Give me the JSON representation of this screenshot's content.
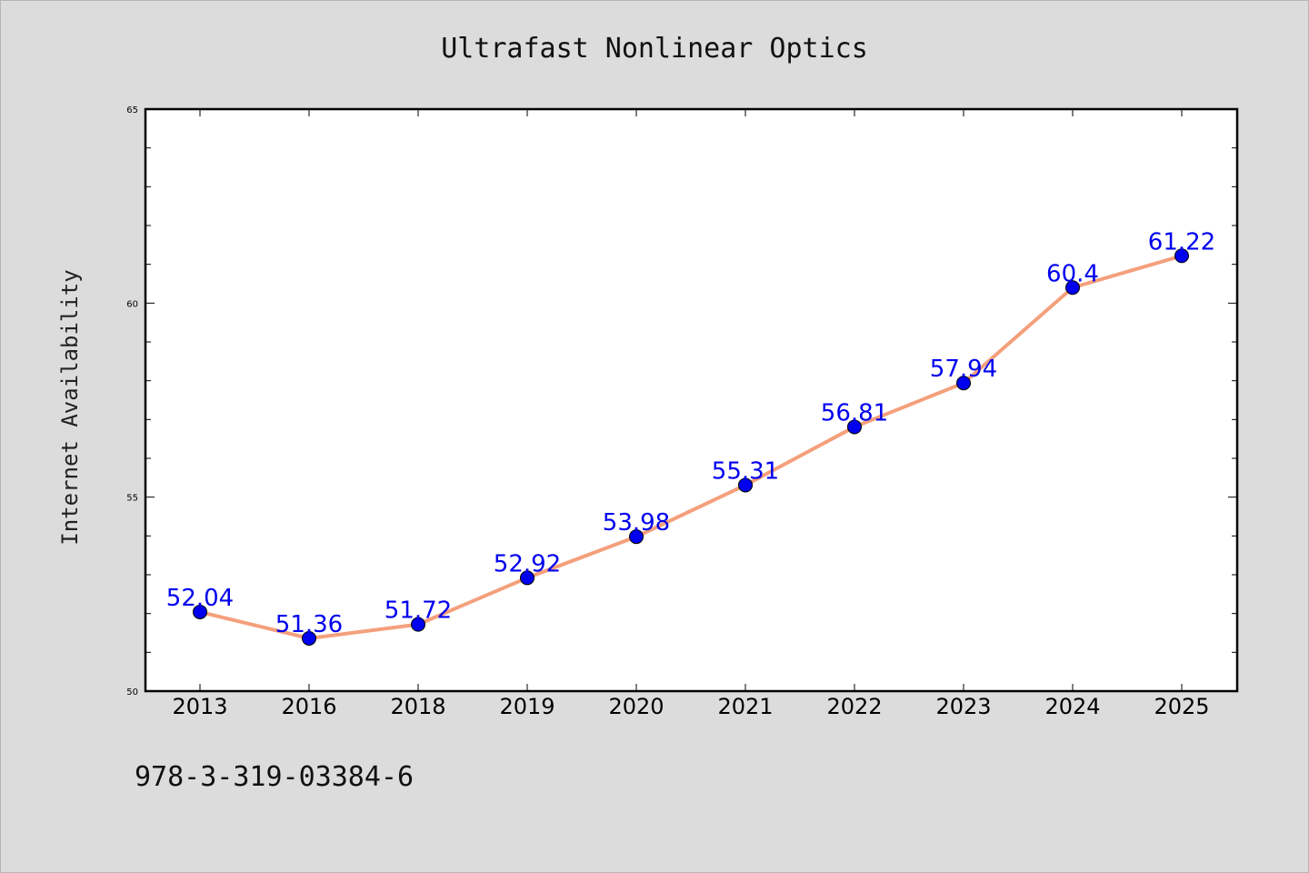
{
  "chart_data": {
    "type": "line",
    "title": "Ultrafast Nonlinear Optics",
    "ylabel": "Internet Availability",
    "xlabel": "",
    "categories": [
      "2013",
      "2016",
      "2018",
      "2019",
      "2020",
      "2021",
      "2022",
      "2023",
      "2024",
      "2025"
    ],
    "values": [
      52.04,
      51.36,
      51.72,
      52.92,
      53.98,
      55.31,
      56.81,
      57.94,
      60.4,
      61.22
    ],
    "data_labels": [
      "52.04",
      "51.36",
      "51.72",
      "52.92",
      "53.98",
      "55.31",
      "56.81",
      "57.94",
      "60.4",
      "61.22"
    ],
    "ylim": [
      50,
      65
    ],
    "yticks": [
      "50",
      "55",
      "60",
      "65"
    ],
    "grid": false,
    "line_color": "#f4a07c",
    "marker_color": "#0000ee",
    "label_color": "#0000ee",
    "background_color": "#dcdcdc"
  },
  "footer": {
    "isbn": "978-3-319-03384-6"
  }
}
